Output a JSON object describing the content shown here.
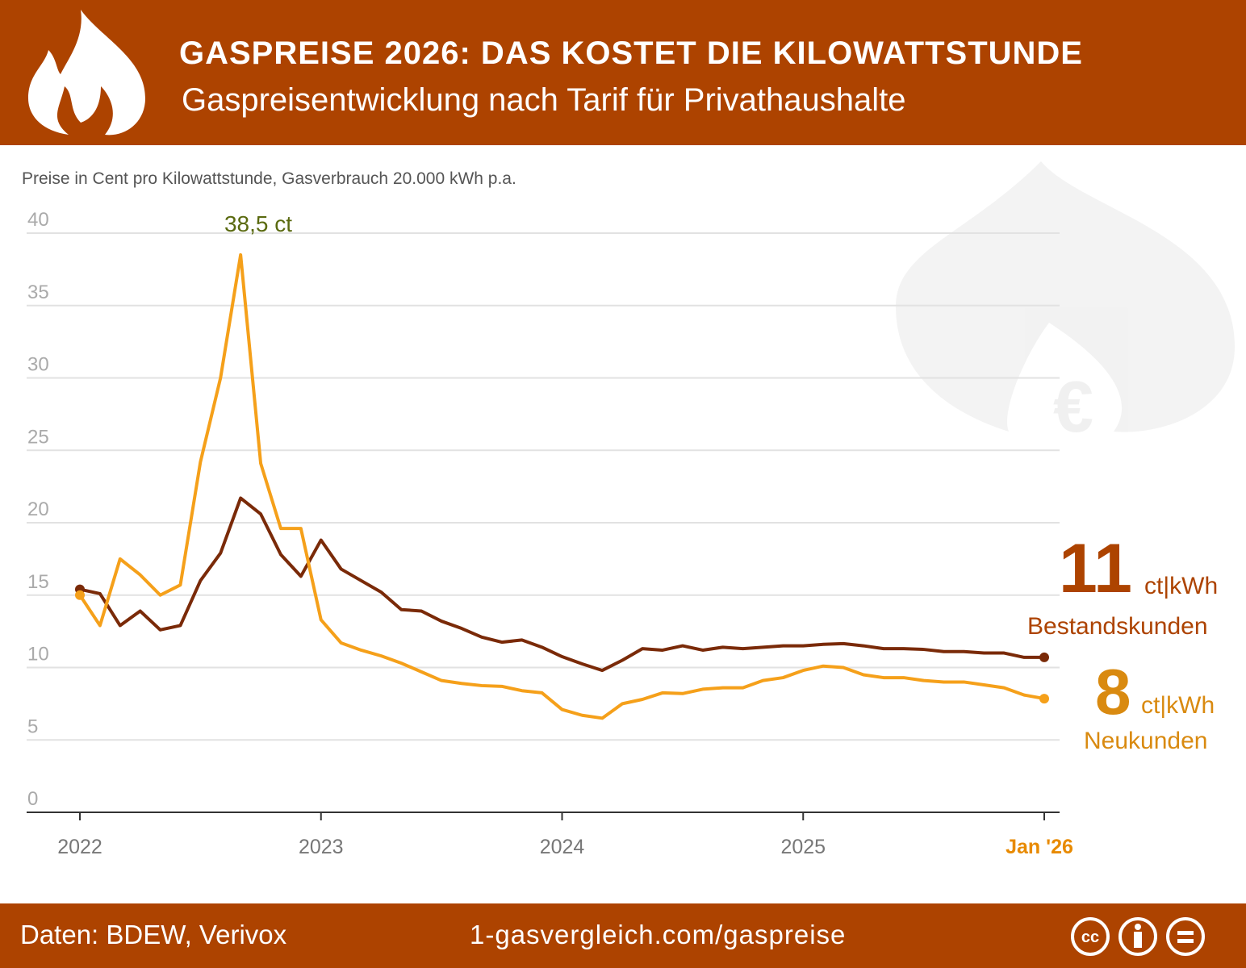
{
  "header": {
    "title": "GASPREISE 2026: DAS KOSTET DIE KILOWATTSTUNDE",
    "subtitle": "Gaspreisentwicklung nach Tarif für Privathaushalte",
    "icon": "flame-icon"
  },
  "footer": {
    "source": "Daten: BDEW, Verivox",
    "url": "1-gasvergleich.com/gaspreise",
    "license_icons": [
      "cc-icon",
      "by-icon",
      "nd-icon"
    ]
  },
  "colors": {
    "brand": "#ad4300",
    "neukunden": "#f5a01a",
    "bestandskunden": "#7a2a08"
  },
  "labels": {
    "bestand_value": "11",
    "bestand_unit": "ct|kWh",
    "bestand_name": "Bestandskunden",
    "neu_value": "8",
    "neu_unit": "ct|kWh",
    "neu_name": "Neukunden"
  },
  "chart_data": {
    "type": "line",
    "subtitle": "Preise in Cent pro Kilowattstunde, Gasverbrauch 20.000 kWh p.a.",
    "ylim": [
      0,
      40
    ],
    "yticks": [
      "0",
      "5",
      "10",
      "15",
      "20",
      "25",
      "30",
      "35",
      "40"
    ],
    "xticks": [
      "2022",
      "2023",
      "2024",
      "2025",
      "Jan '26"
    ],
    "x_start": "2022-01",
    "x_end": "2026-01",
    "frequency": "monthly",
    "grid": true,
    "annotation": {
      "text": "38,5 ct",
      "x": "2022-09",
      "y": 38.5
    },
    "series": [
      {
        "name": "Bestandskunden",
        "values": [
          15.4,
          15.1,
          12.9,
          13.9,
          12.6,
          12.9,
          16.0,
          17.9,
          21.7,
          20.6,
          17.8,
          16.3,
          18.8,
          16.8,
          16.0,
          15.2,
          14.0,
          13.9,
          13.2,
          12.7,
          12.1,
          11.75,
          11.9,
          11.4,
          10.75,
          10.25,
          9.8,
          10.5,
          11.3,
          11.2,
          11.5,
          11.2,
          11.4,
          11.3,
          11.4,
          11.5,
          11.5,
          11.6,
          11.65,
          11.5,
          11.3,
          11.3,
          11.25,
          11.1,
          11.1,
          11.0,
          11.0,
          10.7,
          10.7
        ]
      },
      {
        "name": "Neukunden",
        "values": [
          15.0,
          12.9,
          17.5,
          16.4,
          15.0,
          15.7,
          24.2,
          30.0,
          38.5,
          24.1,
          19.6,
          19.6,
          13.3,
          11.7,
          11.2,
          10.8,
          10.3,
          9.7,
          9.1,
          8.9,
          8.75,
          8.7,
          8.4,
          8.25,
          7.1,
          6.7,
          6.5,
          7.5,
          7.8,
          8.25,
          8.2,
          8.5,
          8.6,
          8.6,
          9.1,
          9.3,
          9.8,
          10.1,
          10.0,
          9.5,
          9.3,
          9.3,
          9.1,
          9.0,
          9.0,
          8.8,
          8.6,
          8.1,
          7.85
        ]
      }
    ]
  }
}
